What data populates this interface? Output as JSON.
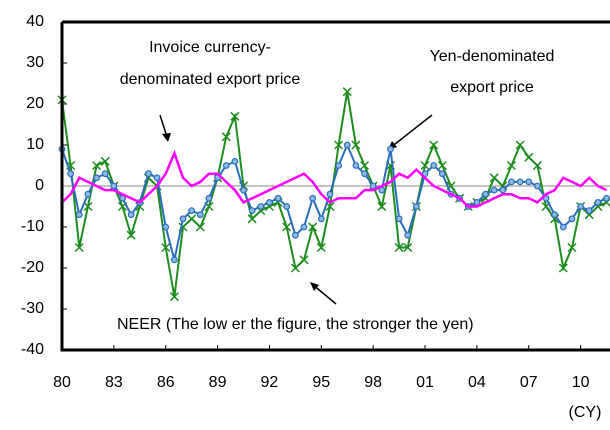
{
  "chart_data": {
    "type": "line",
    "x_label": "(CY)",
    "xlim": [
      1980,
      2011.7
    ],
    "xticks": [
      {
        "value": 1980,
        "label": "80"
      },
      {
        "value": 1983,
        "label": "83"
      },
      {
        "value": 1986,
        "label": "86"
      },
      {
        "value": 1989,
        "label": "89"
      },
      {
        "value": 1992,
        "label": "92"
      },
      {
        "value": 1995,
        "label": "95"
      },
      {
        "value": 1998,
        "label": "98"
      },
      {
        "value": 2001,
        "label": "01"
      },
      {
        "value": 2004,
        "label": "04"
      },
      {
        "value": 2007,
        "label": "07"
      },
      {
        "value": 2010,
        "label": "10"
      }
    ],
    "ylim": [
      -40,
      40
    ],
    "yticks": [
      -40,
      -30,
      -20,
      -10,
      0,
      10,
      20,
      30,
      40
    ],
    "x": [
      1980,
      1980.5,
      1981,
      1981.5,
      1982,
      1982.5,
      1983,
      1983.5,
      1984,
      1984.5,
      1985,
      1985.5,
      1986,
      1986.5,
      1987,
      1987.5,
      1988,
      1988.5,
      1989,
      1989.5,
      1990,
      1990.5,
      1991,
      1991.5,
      1992,
      1992.5,
      1993,
      1993.5,
      1994,
      1994.5,
      1995,
      1995.5,
      1996,
      1996.5,
      1997,
      1997.5,
      1998,
      1998.5,
      1999,
      1999.5,
      2000,
      2000.5,
      2001,
      2001.5,
      2002,
      2002.5,
      2003,
      2003.5,
      2004,
      2004.5,
      2005,
      2005.5,
      2006,
      2006.5,
      2007,
      2007.5,
      2008,
      2008.5,
      2009,
      2009.5,
      2010,
      2010.5,
      2011,
      2011.5
    ],
    "series": [
      {
        "name": "NEER",
        "color": "#1e8c1e",
        "marker": "x",
        "values": [
          21,
          5,
          -15,
          -5,
          5,
          6,
          0,
          -5,
          -12,
          -5,
          2,
          0,
          -15,
          -27,
          -10,
          -8,
          -10,
          -5,
          2,
          12,
          17,
          0,
          -8,
          -6,
          -5,
          -4,
          -10,
          -20,
          -18,
          -10,
          -15,
          -5,
          10,
          23,
          10,
          5,
          0,
          -5,
          5,
          -15,
          -15,
          -5,
          5,
          10,
          5,
          0,
          -3,
          -5,
          -4,
          -3,
          2,
          0,
          5,
          10,
          7,
          5,
          -5,
          -8,
          -20,
          -15,
          -5,
          -7,
          -5,
          -4
        ]
      },
      {
        "name": "Yen-denominated export price",
        "color": "#2a6ebb",
        "marker": "circle",
        "values": [
          9,
          3,
          -7,
          -2,
          2,
          3,
          0,
          -3,
          -7,
          -4,
          3,
          2,
          -10,
          -18,
          -8,
          -6,
          -7,
          -3,
          2,
          5,
          6,
          -1,
          -6,
          -5,
          -4,
          -3,
          -5,
          -12,
          -10,
          -3,
          -8,
          -2,
          5,
          10,
          5,
          3,
          0,
          -1,
          9,
          -8,
          -12,
          -5,
          3,
          5,
          3,
          -2,
          -3,
          -5,
          -4,
          -2,
          -1,
          -1,
          1,
          1,
          1,
          0,
          -3,
          -7,
          -10,
          -8,
          -5,
          -6,
          -4,
          -3
        ]
      },
      {
        "name": "Invoice currency-denominated export price",
        "color": "#ff00ff",
        "marker": "none",
        "values": [
          -4,
          -2,
          2,
          1,
          0,
          -1,
          -1,
          -2,
          -3,
          -4,
          -2,
          0,
          3,
          8,
          2,
          0,
          1,
          3,
          3,
          1,
          -1,
          -4,
          -3,
          -2,
          -1,
          0,
          1,
          2,
          3,
          1,
          -2,
          -4,
          -3,
          -3,
          -3,
          -1,
          -1,
          0,
          1,
          3,
          2,
          4,
          2,
          0,
          -1,
          -2,
          -3,
          -5,
          -5,
          -4,
          -3,
          -2,
          -2,
          -3,
          -3,
          -4,
          -2,
          -1,
          2,
          1,
          0,
          2,
          0,
          -1
        ]
      }
    ],
    "annotations": [
      "Invoice currency-",
      "denominated export price",
      "Yen-denominated",
      "export price",
      "NEER (The low er the figure, the stronger the yen)"
    ]
  }
}
